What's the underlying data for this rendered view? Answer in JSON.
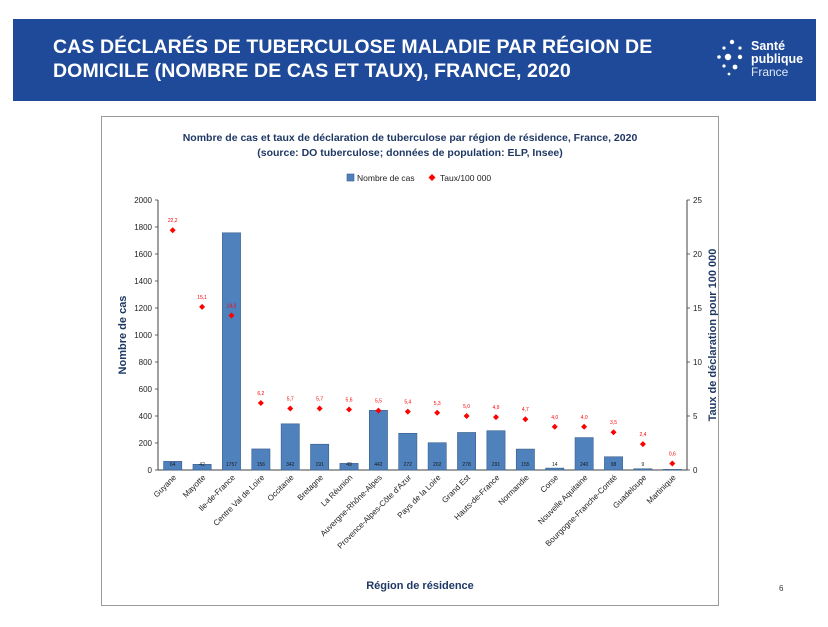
{
  "banner": {
    "title_line1": "CAS DÉCLARÉS DE TUBERCULOSE MALADIE PAR RÉGION DE",
    "title_line2": "DOMICILE (NOMBRE DE CAS ET TAUX), FRANCE, 2020",
    "background": "#1e4a99"
  },
  "logo": {
    "line1": "Santé",
    "line2": "publique",
    "line3": "France",
    "icon": "dots-logo-icon"
  },
  "page_number": "6",
  "chart_data": {
    "type": "bar",
    "title": "Nombre de cas et taux de déclaration de tuberculose par région de résidence, France, 2020",
    "subtitle": "(source: DO tuberculose; données de population: ELP, Insee)",
    "xlabel": "Région de résidence",
    "ylabel": "Nombre de cas",
    "y2label": "Taux de déclaration pour 100 000",
    "ylim": [
      0,
      2000
    ],
    "yticks": [
      "0",
      "200",
      "400",
      "600",
      "800",
      "1000",
      "1200",
      "1400",
      "1600",
      "1800",
      "2000"
    ],
    "y2lim": [
      0,
      25
    ],
    "y2ticks": [
      "0",
      "5",
      "10",
      "15",
      "20",
      "25"
    ],
    "legend_position": "top",
    "grid": false,
    "categories": [
      "Guyane",
      "Mayotte",
      "Ile-de-France",
      "Centre Val de Loire",
      "Occitanie",
      "Bretagne",
      "La Réunion",
      "Auvergne-Rhône-Alpes",
      "Provence-Alpes-Côte d'Azur",
      "Pays de la Loire",
      "Grand Est",
      "Hauts-de-France",
      "Normandie",
      "Corse",
      "Nouvelle Aquitaine",
      "Bourgogne-Franche-Comté",
      "Guadeloupe",
      "Martinique"
    ],
    "series": [
      {
        "name": "Nombre de cas",
        "kind": "bar",
        "axis": "left",
        "color": "#4f81bd",
        "values": [
          64,
          42,
          1757,
          156,
          342,
          191,
          49,
          442,
          272,
          202,
          278,
          291,
          155,
          14,
          240,
          98,
          9,
          2
        ],
        "labels": [
          "64",
          "42",
          "1757",
          "156",
          "342",
          "191",
          "49",
          "442",
          "272",
          "202",
          "278",
          "291",
          "155",
          "14",
          "240",
          "98",
          "9",
          ""
        ]
      },
      {
        "name": "Taux/100 000",
        "kind": "scatter",
        "axis": "right",
        "color": "#ff0000",
        "values": [
          22.2,
          15.1,
          14.3,
          6.2,
          5.7,
          5.7,
          5.6,
          5.5,
          5.4,
          5.3,
          5.0,
          4.9,
          4.7,
          4.0,
          4.0,
          3.5,
          2.4,
          0.6
        ],
        "labels": [
          "22,2",
          "15,1",
          "14,3",
          "6,2",
          "5,7",
          "5,7",
          "5,6",
          "5,5",
          "5,4",
          "5,3",
          "5,0",
          "4,9",
          "4,7",
          "4,0",
          "4,0",
          "3,5",
          "2,4",
          "0,6"
        ]
      }
    ]
  }
}
